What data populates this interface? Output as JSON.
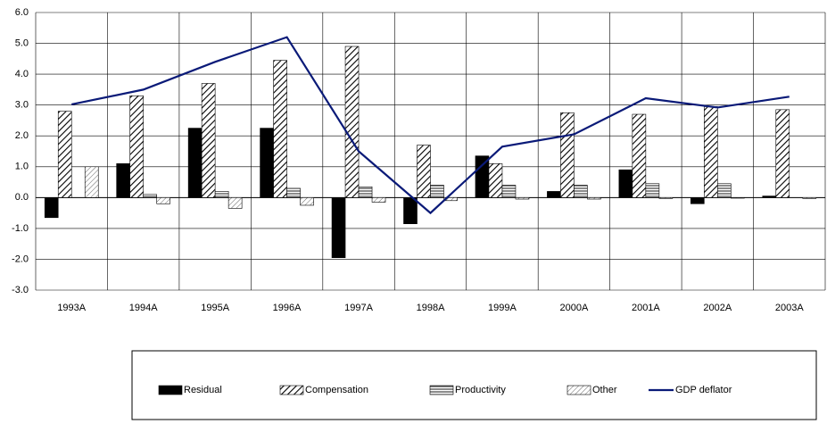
{
  "chart_data": {
    "type": "bar",
    "categories": [
      "1993A",
      "1994A",
      "1995A",
      "1996A",
      "1997A",
      "1998A",
      "1999A",
      "2000A",
      "2001A",
      "2002A",
      "2003A"
    ],
    "series": [
      {
        "name": "Residual",
        "color": "#000000",
        "pattern": "solid",
        "values": [
          -0.65,
          1.1,
          2.25,
          2.25,
          -1.95,
          -0.85,
          1.35,
          0.2,
          0.9,
          -0.2,
          0.05
        ]
      },
      {
        "name": "Compensation",
        "color": "#000000",
        "pattern": "diagonal",
        "values": [
          2.8,
          3.3,
          3.7,
          4.45,
          4.9,
          1.7,
          1.1,
          2.75,
          2.7,
          2.95,
          2.85
        ]
      },
      {
        "name": "Productivity",
        "color": "#000000",
        "pattern": "horizontal",
        "values": [
          0,
          0.1,
          0.2,
          0.3,
          0.35,
          0.4,
          0.4,
          0.4,
          0.45,
          0.45,
          0
        ]
      },
      {
        "name": "Other",
        "color": "#000000",
        "pattern": "diagonal-light",
        "values": [
          1.0,
          -0.2,
          -0.35,
          -0.25,
          -0.15,
          -0.1,
          -0.05,
          -0.05,
          -0.03,
          -0.02,
          -0.03
        ]
      },
      {
        "name": "GDP deflator",
        "color": "#0a1a78",
        "type": "line",
        "values": [
          3.02,
          3.5,
          4.4,
          5.2,
          1.5,
          -0.5,
          1.65,
          2.05,
          3.22,
          2.92,
          3.27
        ]
      }
    ],
    "ylim": [
      -3,
      6
    ],
    "yticks": [
      {
        "value": -3,
        "label": "-3.0"
      },
      {
        "value": -2,
        "label": "-2.0"
      },
      {
        "value": -1,
        "label": "-1.0"
      },
      {
        "value": 0,
        "label": "0.0"
      },
      {
        "value": 1,
        "label": "1.0"
      },
      {
        "value": 2,
        "label": "2.0"
      },
      {
        "value": 3,
        "label": "3.0"
      },
      {
        "value": 4,
        "label": "4.0"
      },
      {
        "value": 5,
        "label": "5.0"
      },
      {
        "value": 6,
        "label": "6.0"
      }
    ],
    "grid": true,
    "legend": "bottom"
  }
}
